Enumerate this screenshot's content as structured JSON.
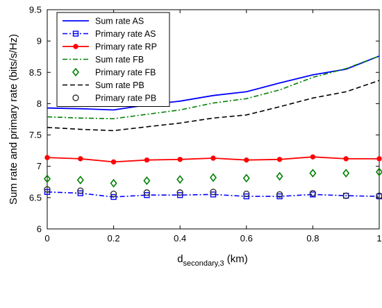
{
  "chart_data": {
    "type": "line",
    "xlabel_main": "d",
    "xlabel_sub": "secondary,3",
    "xlabel_unit": " (km)",
    "ylabel": "Sum rate and primary rate (bits/s/Hz)",
    "xlim": [
      0,
      1
    ],
    "ylim": [
      6,
      9.5
    ],
    "grid": false,
    "legend_position": "top-left",
    "x": [
      0,
      0.1,
      0.2,
      0.3,
      0.4,
      0.5,
      0.6,
      0.7,
      0.8,
      0.9,
      1.0
    ],
    "x_ticks": [
      "0",
      "0.2",
      "0.4",
      "0.6",
      "0.8",
      "1"
    ],
    "y_ticks": [
      "6",
      "6.5",
      "7",
      "7.5",
      "8",
      "8.5",
      "9",
      "9.5"
    ],
    "series": [
      {
        "name": "Sum rate AS",
        "color": "#0000ff",
        "line": "solid",
        "marker": "none",
        "values": [
          7.93,
          7.92,
          7.9,
          7.98,
          8.04,
          8.13,
          8.19,
          8.33,
          8.46,
          8.55,
          8.76
        ]
      },
      {
        "name": "Primary rate AS",
        "color": "#0000ff",
        "line": "dashdot",
        "marker": "square",
        "values": [
          6.59,
          6.57,
          6.51,
          6.54,
          6.54,
          6.55,
          6.52,
          6.52,
          6.55,
          6.53,
          6.52
        ]
      },
      {
        "name": "Primary rate RP",
        "color": "#ff0000",
        "line": "solid",
        "marker": "dot",
        "values": [
          7.14,
          7.12,
          7.07,
          7.1,
          7.11,
          7.13,
          7.1,
          7.11,
          7.15,
          7.12,
          7.12
        ]
      },
      {
        "name": "Sum rate FB",
        "color": "#008000",
        "line": "dashdot",
        "marker": "none",
        "values": [
          7.79,
          7.77,
          7.76,
          7.83,
          7.9,
          8.01,
          8.08,
          8.22,
          8.42,
          8.56,
          8.76
        ]
      },
      {
        "name": "Primary rate FB",
        "color": "#008000",
        "line": "none",
        "marker": "diamond",
        "values": [
          6.8,
          6.78,
          6.73,
          6.77,
          6.79,
          6.82,
          6.81,
          6.84,
          6.89,
          6.89,
          6.91
        ]
      },
      {
        "name": "Sum rate PB",
        "color": "#000000",
        "line": "dashed",
        "marker": "none",
        "values": [
          7.62,
          7.59,
          7.57,
          7.63,
          7.69,
          7.77,
          7.82,
          7.95,
          8.09,
          8.19,
          8.37
        ]
      },
      {
        "name": "Primary rate PB",
        "color": "#333333",
        "line": "none",
        "marker": "circle",
        "values": [
          6.63,
          6.61,
          6.56,
          6.58,
          6.58,
          6.59,
          6.56,
          6.55,
          6.57,
          6.53,
          6.53
        ]
      }
    ]
  }
}
